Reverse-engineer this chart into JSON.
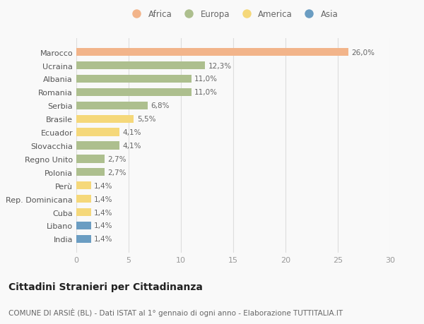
{
  "countries": [
    "India",
    "Libano",
    "Cuba",
    "Rep. Dominicana",
    "Perù",
    "Polonia",
    "Regno Unito",
    "Slovacchia",
    "Ecuador",
    "Brasile",
    "Serbia",
    "Romania",
    "Albania",
    "Ucraina",
    "Marocco"
  ],
  "values": [
    1.4,
    1.4,
    1.4,
    1.4,
    1.4,
    2.7,
    2.7,
    4.1,
    4.1,
    5.5,
    6.8,
    11.0,
    11.0,
    12.3,
    26.0
  ],
  "labels": [
    "1,4%",
    "1,4%",
    "1,4%",
    "1,4%",
    "1,4%",
    "2,7%",
    "2,7%",
    "4,1%",
    "4,1%",
    "5,5%",
    "6,8%",
    "11,0%",
    "11,0%",
    "12,3%",
    "26,0%"
  ],
  "continents": [
    "Asia",
    "Asia",
    "America",
    "America",
    "America",
    "Europa",
    "Europa",
    "Europa",
    "America",
    "America",
    "Europa",
    "Europa",
    "Europa",
    "Europa",
    "Africa"
  ],
  "colors": {
    "Africa": "#F2B48A",
    "Europa": "#ADBF8E",
    "America": "#F5D87A",
    "Asia": "#6B9DC2"
  },
  "legend_order": [
    "Africa",
    "Europa",
    "America",
    "Asia"
  ],
  "title": "Cittadini Stranieri per Cittadinanza",
  "subtitle": "COMUNE DI ARSIÈ (BL) - Dati ISTAT al 1° gennaio di ogni anno - Elaborazione TUTTITALIA.IT",
  "xlim": [
    0,
    30
  ],
  "xticks": [
    0,
    5,
    10,
    15,
    20,
    25,
    30
  ],
  "background_color": "#f9f9f9",
  "bar_height": 0.6,
  "title_fontsize": 10,
  "subtitle_fontsize": 7.5,
  "label_fontsize": 7.5,
  "ytick_fontsize": 8,
  "xtick_fontsize": 8,
  "legend_fontsize": 8.5
}
